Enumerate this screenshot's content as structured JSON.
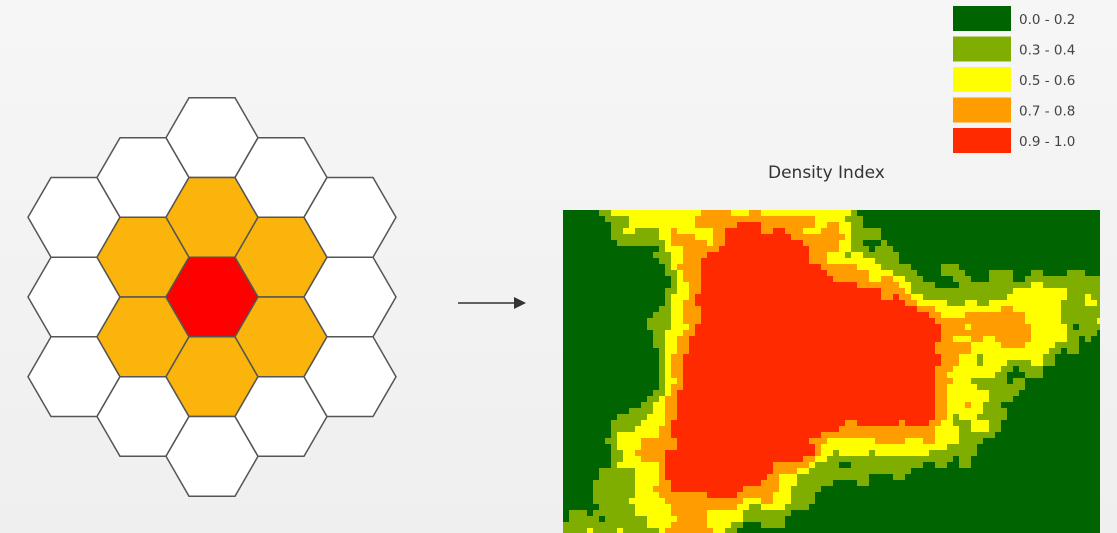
{
  "legend": {
    "title": "Density Index",
    "classes": [
      {
        "label": "0.0 - 0.2",
        "color": "#006400"
      },
      {
        "label": "0.3 - 0.4",
        "color": "#7fae00"
      },
      {
        "label": "0.5 - 0.6",
        "color": "#ffff00"
      },
      {
        "label": "0.7 - 0.8",
        "color": "#ff9d00"
      },
      {
        "label": "0.9 - 1.0",
        "color": "#ff2a00"
      }
    ]
  },
  "hex_grid": {
    "center_color": "#ff0000",
    "neighbor_color": "#fbb40b",
    "outer_color": "#ffffff",
    "stroke_color": "#555555"
  },
  "arrow": {
    "color": "#333333"
  },
  "map_seed": 20240611
}
